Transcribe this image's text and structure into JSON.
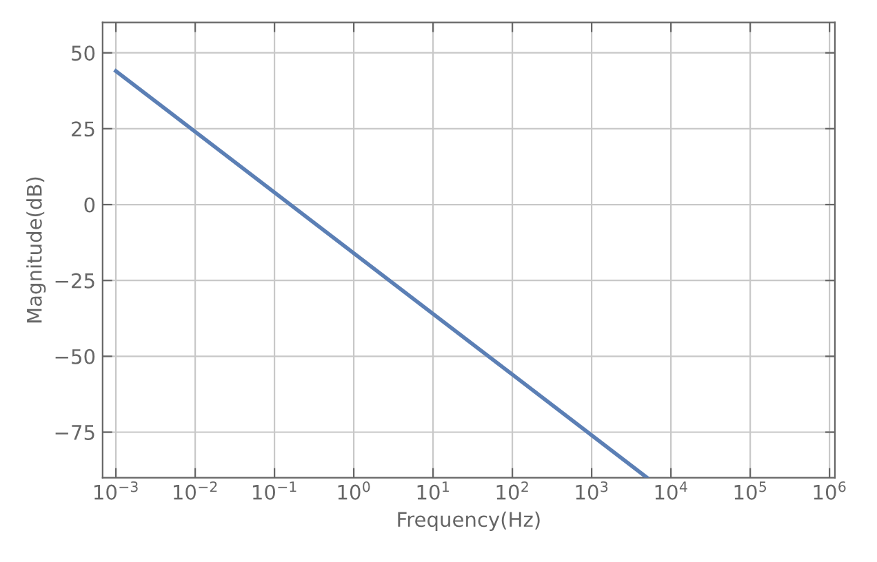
{
  "chart_data": {
    "type": "line",
    "xlabel": "Frequency(Hz)",
    "ylabel": "Magnitude(dB)",
    "log": "x",
    "x": [
      0.001,
      5000
    ],
    "series": [
      {
        "color": "#5b7fb5",
        "values": [
          44,
          -90
        ]
      }
    ],
    "xlim": [
      0.00068,
      1170000
    ],
    "ylim": [
      -90,
      60
    ],
    "xticks": [
      {
        "value": 0.001,
        "label": "10$^{−3}$"
      },
      {
        "value": 0.01,
        "label": "10$^{−2}$"
      },
      {
        "value": 0.1,
        "label": "10$^{−1}$"
      },
      {
        "value": 1,
        "label": "10$^{0}$"
      },
      {
        "value": 10,
        "label": "10$^{1}$"
      },
      {
        "value": 100,
        "label": "10$^{2}$"
      },
      {
        "value": 1000,
        "label": "10$^{3}$"
      },
      {
        "value": 10000,
        "label": "10$^{4}$"
      },
      {
        "value": 100000,
        "label": "10$^{5}$"
      },
      {
        "value": 1000000,
        "label": "10$^{6}$"
      }
    ],
    "yticks": [
      {
        "value": -75,
        "label": "−75"
      },
      {
        "value": -50,
        "label": "−50"
      },
      {
        "value": -25,
        "label": "−25"
      },
      0,
      25,
      50
    ],
    "grid": true,
    "marker": "none",
    "line_style": "solid"
  }
}
